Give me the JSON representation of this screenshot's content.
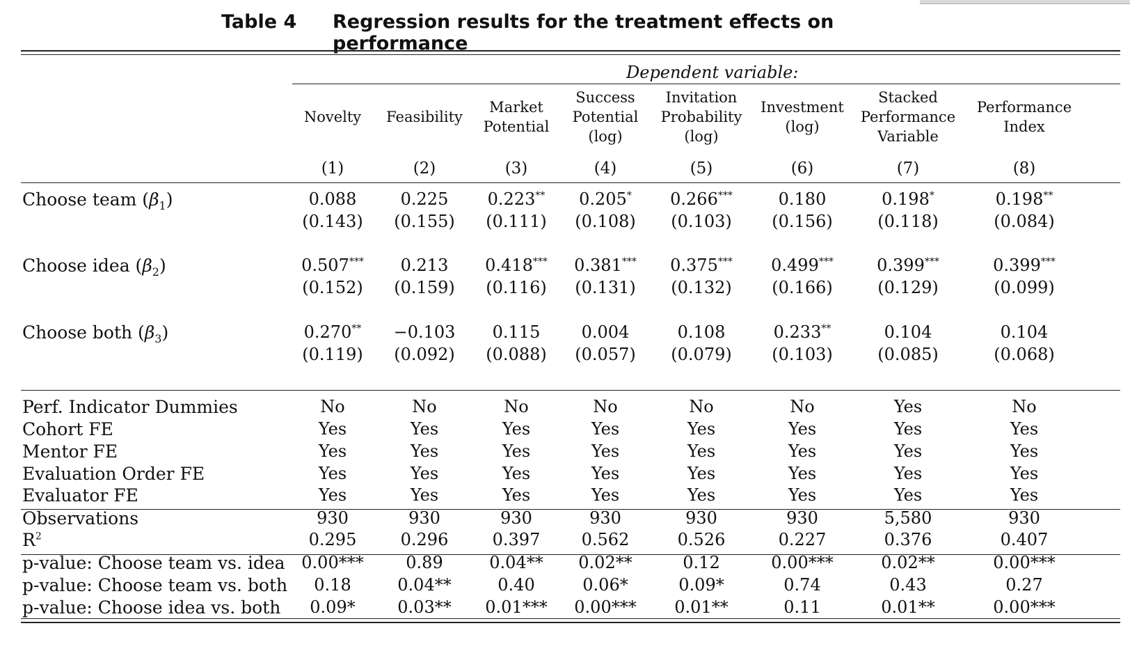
{
  "table": {
    "number": "Table 4",
    "title": "Regression results for the treatment effects on performance",
    "dependent_variable_label": "Dependent variable:",
    "columns": [
      {
        "header": [
          "Novelty"
        ],
        "num": "(1)"
      },
      {
        "header": [
          "Feasibility"
        ],
        "num": "(2)"
      },
      {
        "header": [
          "Market",
          "Potential"
        ],
        "num": "(3)"
      },
      {
        "header": [
          "Success",
          "Potential",
          "(log)"
        ],
        "num": "(4)"
      },
      {
        "header": [
          "Invitation",
          "Probability",
          "(log)"
        ],
        "num": "(5)"
      },
      {
        "header": [
          "Investment",
          "(log)"
        ],
        "num": "(6)"
      },
      {
        "header": [
          "Stacked",
          "Performance",
          "Variable"
        ],
        "num": "(7)"
      },
      {
        "header": [
          "Performance",
          "Index"
        ],
        "num": "(8)"
      }
    ],
    "coef_rows": [
      {
        "label": "Choose team",
        "beta": "β",
        "beta_sub": "1",
        "coefs": [
          "0.088",
          "0.225",
          "0.223",
          "0.205",
          "0.266",
          "0.180",
          "0.198",
          "0.198"
        ],
        "stars": [
          "",
          "",
          "**",
          "*",
          "***",
          "",
          "*",
          "**"
        ],
        "ses": [
          "(0.143)",
          "(0.155)",
          "(0.111)",
          "(0.108)",
          "(0.103)",
          "(0.156)",
          "(0.118)",
          "(0.084)"
        ]
      },
      {
        "label": "Choose idea",
        "beta": "β",
        "beta_sub": "2",
        "coefs": [
          "0.507",
          "0.213",
          "0.418",
          "0.381",
          "0.375",
          "0.499",
          "0.399",
          "0.399"
        ],
        "stars": [
          "***",
          "",
          "***",
          "***",
          "***",
          "***",
          "***",
          "***"
        ],
        "ses": [
          "(0.152)",
          "(0.159)",
          "(0.116)",
          "(0.131)",
          "(0.132)",
          "(0.166)",
          "(0.129)",
          "(0.099)"
        ]
      },
      {
        "label": "Choose both",
        "beta": "β",
        "beta_sub": "3",
        "coefs": [
          "0.270",
          "−0.103",
          "0.115",
          "0.004",
          "0.108",
          "0.233",
          "0.104",
          "0.104"
        ],
        "stars": [
          "**",
          "",
          "",
          "",
          "",
          "**",
          "",
          ""
        ],
        "ses": [
          "(0.119)",
          "(0.092)",
          "(0.088)",
          "(0.057)",
          "(0.079)",
          "(0.103)",
          "(0.085)",
          "(0.068)"
        ]
      }
    ],
    "fe_rows": [
      {
        "label": "Perf. Indicator Dummies",
        "values": [
          "No",
          "No",
          "No",
          "No",
          "No",
          "No",
          "Yes",
          "No"
        ]
      },
      {
        "label": "Cohort FE",
        "values": [
          "Yes",
          "Yes",
          "Yes",
          "Yes",
          "Yes",
          "Yes",
          "Yes",
          "Yes"
        ]
      },
      {
        "label": "Mentor FE",
        "values": [
          "Yes",
          "Yes",
          "Yes",
          "Yes",
          "Yes",
          "Yes",
          "Yes",
          "Yes"
        ]
      },
      {
        "label": "Evaluation Order FE",
        "values": [
          "Yes",
          "Yes",
          "Yes",
          "Yes",
          "Yes",
          "Yes",
          "Yes",
          "Yes"
        ]
      },
      {
        "label": "Evaluator FE",
        "values": [
          "Yes",
          "Yes",
          "Yes",
          "Yes",
          "Yes",
          "Yes",
          "Yes",
          "Yes"
        ]
      }
    ],
    "stat_rows": [
      {
        "label": "Observations",
        "sup": "",
        "values": [
          "930",
          "930",
          "930",
          "930",
          "930",
          "930",
          "5,580",
          "930"
        ]
      },
      {
        "label": "R",
        "sup": "2",
        "values": [
          "0.295",
          "0.296",
          "0.397",
          "0.562",
          "0.526",
          "0.227",
          "0.376",
          "0.407"
        ]
      }
    ],
    "pvalue_rows": [
      {
        "label": "p-value: Choose team vs. idea",
        "values": [
          "0.00***",
          "0.89",
          "0.04**",
          "0.02**",
          "0.12",
          "0.00***",
          "0.02**",
          "0.00***"
        ]
      },
      {
        "label": "p-value: Choose team vs. both",
        "values": [
          "0.18",
          "0.04**",
          "0.40",
          "0.06*",
          "0.09*",
          "0.74",
          "0.43",
          "0.27"
        ]
      },
      {
        "label": "p-value: Choose idea vs. both",
        "values": [
          "0.09*",
          "0.03**",
          "0.01***",
          "0.00***",
          "0.01**",
          "0.11",
          "0.01**",
          "0.00***"
        ]
      }
    ]
  }
}
